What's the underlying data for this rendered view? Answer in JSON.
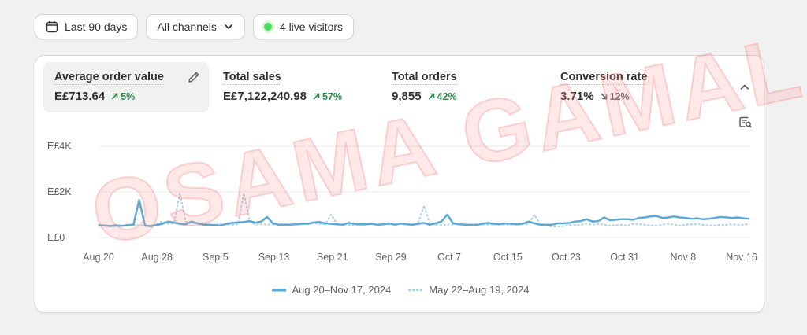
{
  "toolbar": {
    "date_range_label": "Last 90 days",
    "channels_label": "All channels",
    "live_visitors_label": "4 live visitors"
  },
  "metrics": [
    {
      "label": "Average order value",
      "value": "E£713.64",
      "delta": "5%",
      "direction": "up"
    },
    {
      "label": "Total sales",
      "value": "E£7,122,240.98",
      "delta": "57%",
      "direction": "up"
    },
    {
      "label": "Total orders",
      "value": "9,855",
      "delta": "42%",
      "direction": "up"
    },
    {
      "label": "Conversion rate",
      "value": "3.71%",
      "delta": "12%",
      "direction": "down"
    }
  ],
  "colors": {
    "current": "#5aa9d6",
    "previous": "#a9d3ec",
    "up": "#2f8a4d",
    "live": "#4ade5a"
  },
  "icons": [
    "calendar-icon",
    "chevron-down-icon",
    "pencil-icon",
    "chevron-up-icon",
    "report-search-icon"
  ],
  "watermark": "OSAMA GAMAL",
  "chart_data": {
    "type": "line",
    "y_ticks": [
      "E£4K",
      "E£2K",
      "E£0"
    ],
    "ylim": [
      0,
      4000
    ],
    "x_ticks": [
      "Aug 20",
      "Aug 28",
      "Sep 5",
      "Sep 13",
      "Sep 21",
      "Sep 29",
      "Oct 7",
      "Oct 15",
      "Oct 23",
      "Oct 31",
      "Nov 8",
      "Nov 16"
    ],
    "grid": true,
    "series": [
      {
        "name": "Aug 20–Nov 17, 2024",
        "style": "solid",
        "values": [
          520,
          520,
          500,
          530,
          510,
          540,
          560,
          1650,
          520,
          500,
          550,
          600,
          700,
          650,
          600,
          580,
          700,
          620,
          560,
          560,
          540,
          520,
          600,
          640,
          660,
          680,
          720,
          650,
          700,
          900,
          620,
          560,
          560,
          560,
          580,
          600,
          600,
          660,
          680,
          620,
          600,
          580,
          560,
          640,
          600,
          580,
          580,
          600,
          560,
          580,
          620,
          560,
          620,
          580,
          560,
          600,
          640,
          560,
          620,
          700,
          1000,
          620,
          580,
          560,
          560,
          540,
          600,
          640,
          600,
          580,
          620,
          600,
          580,
          600,
          700,
          620,
          560,
          560,
          560,
          620,
          620,
          640,
          700,
          720,
          800,
          700,
          720,
          880,
          760,
          780,
          800,
          800,
          780,
          860,
          880,
          920,
          940,
          860,
          880,
          920,
          880,
          860,
          820,
          840,
          800,
          820,
          860,
          900,
          880,
          860,
          880,
          840,
          820
        ]
      },
      {
        "name": "May 22–Aug 19, 2024",
        "style": "dotted",
        "values": [
          560,
          540,
          500,
          480,
          500,
          520,
          560,
          540,
          500,
          480,
          600,
          700,
          600,
          620,
          1950,
          700,
          640,
          620,
          640,
          520,
          540,
          600,
          560,
          560,
          580,
          1950,
          700,
          560,
          600,
          560,
          580,
          600,
          580,
          560,
          600,
          600,
          600,
          620,
          600,
          580,
          1000,
          620,
          560,
          560,
          520,
          540,
          560,
          600,
          560,
          580,
          560,
          600,
          580,
          560,
          580,
          620,
          1400,
          600,
          560,
          560,
          560,
          580,
          600,
          560,
          560,
          600,
          580,
          560,
          560,
          580,
          560,
          560,
          620,
          600,
          580,
          1000,
          560,
          520,
          480,
          480,
          500,
          560,
          540,
          560,
          600,
          560,
          600,
          560,
          520,
          540,
          560,
          520,
          600,
          580,
          560,
          520,
          520,
          560,
          600,
          560,
          520,
          560,
          580,
          600,
          560,
          520,
          520,
          560,
          560,
          580,
          560,
          560,
          600
        ]
      }
    ]
  }
}
